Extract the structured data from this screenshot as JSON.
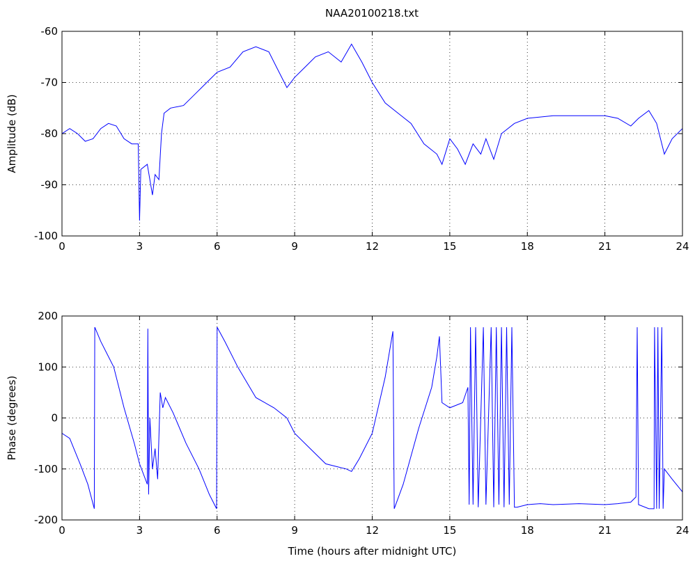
{
  "chart_data": [
    {
      "type": "line",
      "title": "NAA20100218.txt",
      "ylabel": "Amplitude (dB)",
      "color": "#0000ff",
      "grid": true,
      "xlim": [
        0,
        24
      ],
      "xticks": [
        0,
        3,
        6,
        9,
        12,
        15,
        18,
        21,
        24
      ],
      "ylim": [
        -100,
        -60
      ],
      "yticks": [
        -100,
        -90,
        -80,
        -70,
        -60
      ],
      "x": [
        0,
        0.3,
        0.6,
        0.9,
        1.2,
        1.5,
        1.8,
        2.1,
        2.4,
        2.7,
        2.95,
        3.0,
        3.05,
        3.3,
        3.5,
        3.6,
        3.75,
        3.85,
        3.95,
        4.2,
        4.7,
        5.2,
        5.6,
        6.0,
        6.5,
        7.0,
        7.5,
        8.0,
        8.3,
        8.7,
        9.0,
        9.4,
        9.8,
        10.3,
        10.8,
        11.2,
        11.6,
        12.0,
        12.5,
        13.0,
        13.5,
        14.0,
        14.5,
        14.7,
        15.0,
        15.3,
        15.6,
        15.9,
        16.2,
        16.4,
        16.7,
        17.0,
        17.5,
        18.0,
        19.0,
        20.0,
        21.0,
        21.5,
        22.0,
        22.3,
        22.7,
        23.0,
        23.3,
        23.6,
        24.0
      ],
      "values": [
        -80,
        -79,
        -80,
        -81.5,
        -81,
        -79,
        -78,
        -78.5,
        -81,
        -82,
        -82,
        -97,
        -87,
        -86,
        -92,
        -88,
        -89,
        -80,
        -76,
        -75,
        -74.5,
        -72,
        -70,
        -68,
        -67,
        -64,
        -63,
        -64,
        -67,
        -71,
        -69,
        -67,
        -65,
        -64,
        -66,
        -62.5,
        -66,
        -70,
        -74,
        -76,
        -78,
        -82,
        -84,
        -86,
        -81,
        -83,
        -86,
        -82,
        -84,
        -81,
        -85,
        -80,
        -78,
        -77,
        -76.5,
        -76.5,
        -76.5,
        -77,
        -78.5,
        -77,
        -75.5,
        -78,
        -84,
        -81,
        -79
      ]
    },
    {
      "type": "line",
      "xlabel": "Time (hours after midnight UTC)",
      "ylabel": "Phase (degrees)",
      "color": "#0000ff",
      "grid": true,
      "xlim": [
        0,
        24
      ],
      "xticks": [
        0,
        3,
        6,
        9,
        12,
        15,
        18,
        21,
        24
      ],
      "ylim": [
        -200,
        200
      ],
      "yticks": [
        -200,
        -100,
        0,
        100,
        200
      ],
      "x": [
        0,
        0.3,
        0.7,
        1.0,
        1.25,
        1.27,
        1.5,
        2.0,
        2.4,
        2.8,
        3.0,
        3.3,
        3.32,
        3.35,
        3.4,
        3.5,
        3.6,
        3.7,
        3.8,
        3.9,
        4.0,
        4.3,
        4.8,
        5.3,
        5.7,
        5.98,
        6.0,
        6.3,
        6.8,
        7.5,
        8.2,
        8.7,
        9.0,
        9.6,
        10.2,
        10.6,
        11.0,
        11.2,
        11.5,
        12.0,
        12.5,
        12.8,
        12.85,
        13.2,
        13.8,
        14.3,
        14.5,
        14.6,
        14.7,
        15.0,
        15.5,
        15.7,
        15.75,
        15.8,
        15.9,
        16.0,
        16.1,
        16.3,
        16.4,
        16.6,
        16.7,
        16.8,
        16.9,
        17.0,
        17.1,
        17.2,
        17.3,
        17.4,
        17.5,
        17.6,
        18.0,
        18.5,
        19.0,
        20.0,
        21.0,
        21.5,
        22.0,
        22.2,
        22.25,
        22.3,
        22.7,
        22.9,
        22.92,
        23.0,
        23.05,
        23.1,
        23.2,
        23.25,
        23.3,
        23.6,
        24.0
      ],
      "values": [
        -30,
        -40,
        -90,
        -130,
        -178,
        178,
        150,
        100,
        20,
        -50,
        -90,
        -130,
        175,
        -150,
        0,
        -100,
        -60,
        -120,
        50,
        20,
        40,
        10,
        -50,
        -100,
        -150,
        -178,
        178,
        150,
        100,
        40,
        20,
        0,
        -30,
        -60,
        -90,
        -95,
        -100,
        -105,
        -80,
        -30,
        80,
        170,
        -178,
        -130,
        -20,
        60,
        120,
        160,
        30,
        20,
        30,
        60,
        -170,
        178,
        -170,
        178,
        -175,
        178,
        -170,
        178,
        -175,
        178,
        -170,
        178,
        -175,
        178,
        -170,
        178,
        -175,
        -175,
        -170,
        -168,
        -170,
        -168,
        -170,
        -168,
        -165,
        -155,
        178,
        -170,
        -178,
        -178,
        178,
        -178,
        178,
        -178,
        178,
        -178,
        -100,
        -120,
        -145
      ]
    }
  ]
}
